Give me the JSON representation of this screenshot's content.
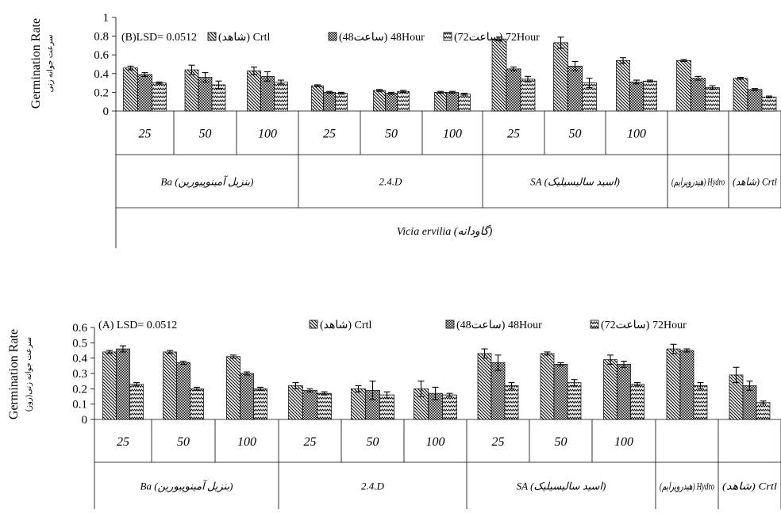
{
  "chart_data": [
    {
      "type": "bar",
      "panel": "B",
      "annotation": "(B)LSD= 0.0512",
      "ylabel": "Germination Rate",
      "ylabel_sub": "سرعت جوانه زنی",
      "ylim": [
        0,
        1
      ],
      "yticks": [
        "0",
        "0.2",
        "0.4",
        "0.6",
        "0.8",
        "1"
      ],
      "categories": [
        "25",
        "50",
        "100",
        "25",
        "50",
        "100",
        "25",
        "50",
        "100",
        "",
        ""
      ],
      "groups": [
        {
          "label": "Ba (بنزیل آمینوپیورین)",
          "span": [
            0,
            2
          ]
        },
        {
          "label": "2.4.D",
          "span": [
            3,
            5
          ]
        },
        {
          "label": "SA (اسید سالیسیلیک)",
          "span": [
            6,
            8
          ]
        },
        {
          "label": "(هیدروپرایم) Hydro",
          "span": [
            9,
            9
          ]
        },
        {
          "label": "(شاهد) Crtl",
          "span": [
            10,
            10
          ]
        }
      ],
      "species": "Vicia ervilia (گاودانه)",
      "series": [
        {
          "name": "(شاهد) Crtl",
          "values": [
            0.46,
            0.44,
            0.43,
            0.27,
            0.22,
            0.2,
            0.77,
            0.73,
            0.54,
            0.54,
            0.35
          ],
          "errors": [
            0.02,
            0.05,
            0.04,
            0.01,
            0.01,
            0.01,
            0.02,
            0.06,
            0.03,
            0.01,
            0.01
          ]
        },
        {
          "name": "(ساعت48) 48Hour",
          "values": [
            0.39,
            0.36,
            0.37,
            0.2,
            0.19,
            0.2,
            0.45,
            0.48,
            0.31,
            0.35,
            0.23
          ],
          "errors": [
            0.02,
            0.05,
            0.05,
            0.01,
            0.01,
            0.01,
            0.02,
            0.05,
            0.02,
            0.02,
            0.01
          ]
        },
        {
          "name": "(ساعت72) 72Hour",
          "values": [
            0.3,
            0.28,
            0.31,
            0.19,
            0.21,
            0.18,
            0.34,
            0.3,
            0.32,
            0.25,
            0.15
          ],
          "errors": [
            0.01,
            0.04,
            0.02,
            0.01,
            0.01,
            0.01,
            0.03,
            0.05,
            0.01,
            0.02,
            0.01
          ]
        }
      ]
    },
    {
      "type": "bar",
      "panel": "A",
      "annotation": "(A) LSD= 0.0512",
      "ylabel": "Germination Rate",
      "ylabel_sub": "سرعت جوانه زنی(روز)",
      "ylim": [
        0,
        0.6
      ],
      "yticks": [
        "0",
        "0.1",
        "0.2",
        "0.3",
        "0.4",
        "0.5",
        "0.6"
      ],
      "categories": [
        "25",
        "50",
        "100",
        "25",
        "50",
        "100",
        "25",
        "50",
        "100",
        "",
        ""
      ],
      "groups": [
        {
          "label": "Ba (بنزیل آمینوپیورین)",
          "span": [
            0,
            2
          ]
        },
        {
          "label": "2.4.D",
          "span": [
            3,
            5
          ]
        },
        {
          "label": "SA (اسید سالیسیلیک)",
          "span": [
            6,
            8
          ]
        },
        {
          "label": "(هیدروپرایم) Hydro",
          "span": [
            9,
            9
          ]
        },
        {
          "label": "(شاهد) Crtl",
          "span": [
            10,
            10
          ]
        }
      ],
      "series": [
        {
          "name": "(شاهد) Crtl",
          "values": [
            0.44,
            0.44,
            0.41,
            0.22,
            0.2,
            0.2,
            0.43,
            0.43,
            0.39,
            0.46,
            0.29
          ],
          "errors": [
            0.01,
            0.01,
            0.01,
            0.02,
            0.02,
            0.05,
            0.03,
            0.01,
            0.03,
            0.03,
            0.05
          ]
        },
        {
          "name": "(ساعت48) 48Hour",
          "values": [
            0.46,
            0.37,
            0.3,
            0.19,
            0.19,
            0.17,
            0.37,
            0.36,
            0.36,
            0.45,
            0.22
          ],
          "errors": [
            0.02,
            0.01,
            0.01,
            0.01,
            0.06,
            0.04,
            0.05,
            0.01,
            0.02,
            0.01,
            0.03
          ]
        },
        {
          "name": "(ساعت72) 72Hour",
          "values": [
            0.23,
            0.2,
            0.2,
            0.17,
            0.16,
            0.16,
            0.22,
            0.24,
            0.23,
            0.22,
            0.11
          ],
          "errors": [
            0.01,
            0.01,
            0.01,
            0.01,
            0.02,
            0.01,
            0.02,
            0.02,
            0.01,
            0.02,
            0.01
          ]
        }
      ]
    }
  ]
}
